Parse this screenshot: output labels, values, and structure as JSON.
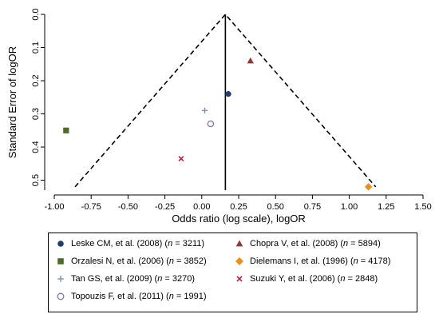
{
  "chart_data": {
    "type": "scatter",
    "xlabel": "Odds ratio (log scale), logOR",
    "ylabel": "Standard Error of logOR",
    "xlim": [
      -1.0,
      1.5
    ],
    "ylim": [
      0.0,
      0.53
    ],
    "y_inverted": true,
    "x_ticks": [
      "-1.00",
      "-0.75",
      "-0.50",
      "-0.25",
      "0.00",
      "0.25",
      "0.50",
      "0.75",
      "1.00",
      "1.25",
      "1.50"
    ],
    "y_ticks": [
      "0.0",
      "0.1",
      "0.2",
      "0.3",
      "0.4",
      "0.5"
    ],
    "pooled_logOR": 0.16,
    "funnel_bottom_se": 0.52,
    "grid": false,
    "legend_position": "bottom",
    "series": [
      {
        "name": "Leske CM, et al. (2008) (n = 3211)",
        "label": "Leske CM, et al. (2008) (",
        "n_text": "n",
        "n_value": " = 3211)",
        "marker": "circle",
        "color": "#1f3f6e",
        "x": 0.18,
        "y": 0.24
      },
      {
        "name": "Chopra V, et al. (2008) (n = 5894)",
        "label": "Chopra V, et al. (2008) (",
        "n_text": "n",
        "n_value": " = 5894)",
        "marker": "triangle",
        "color": "#8b3a3a",
        "x": 0.33,
        "y": 0.14
      },
      {
        "name": "Orzalesi N, et al. (2006) (n = 3852)",
        "label": "Orzalesi N, et al. (2006) (",
        "n_text": "n",
        "n_value": " = 3852)",
        "marker": "square",
        "color": "#4e6b2a",
        "x": -0.92,
        "y": 0.35
      },
      {
        "name": "Dielemans I, et al. (1996) (n = 4178)",
        "label": "Dielemans I, et al. (1996) (",
        "n_text": "n",
        "n_value": " = 4178)",
        "marker": "diamond",
        "color": "#e8901a",
        "x": 1.13,
        "y": 0.52
      },
      {
        "name": "Tan GS, et al. (2009) (n = 3270)",
        "label": "Tan GS, et al. (2009) (",
        "n_text": "n",
        "n_value": " = 3270)",
        "marker": "plus",
        "color": "#7a8fa8",
        "x": 0.02,
        "y": 0.29
      },
      {
        "name": "Suzuki Y, et al. (2006) (n = 2848)",
        "label": "Suzuki Y, et al. (2006) (",
        "n_text": "n",
        "n_value": " = 2848)",
        "marker": "x",
        "color": "#b0243b",
        "x": -0.14,
        "y": 0.435
      },
      {
        "name": "Topouzis F, et al. (2011) (n = 1991)",
        "label": "Topouzis F, et al. (2011) (",
        "n_text": "n",
        "n_value": " = 1991)",
        "marker": "open-circle",
        "color": "#7f73b0",
        "x": 0.06,
        "y": 0.33
      }
    ]
  }
}
